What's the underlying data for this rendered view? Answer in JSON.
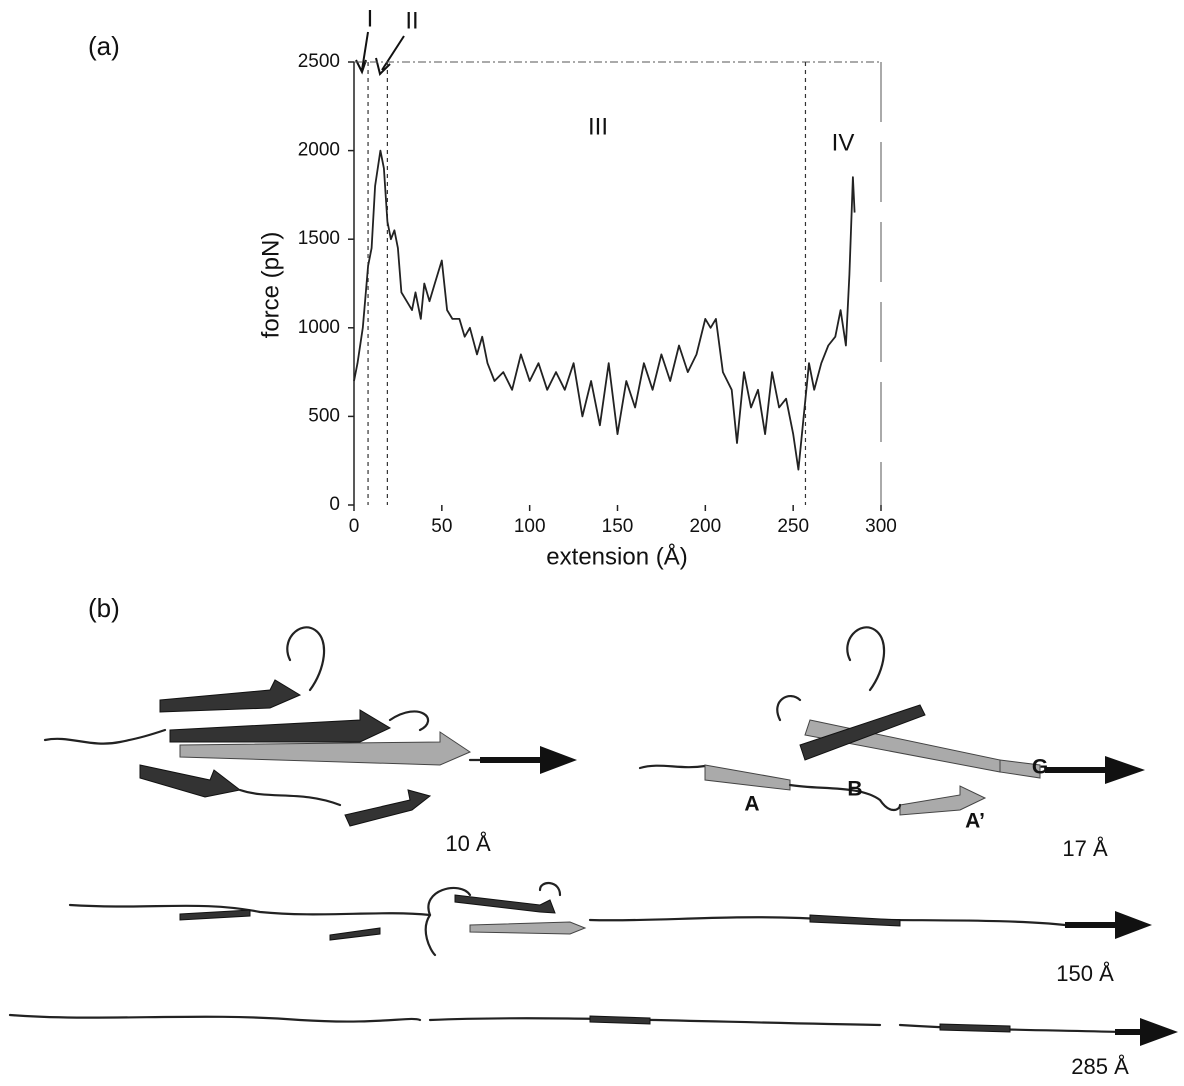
{
  "chart_data": {
    "type": "line",
    "panel_label": "(a)",
    "x_label": "extension (Å)",
    "y_label": "force (pN)",
    "x": [
      0,
      2,
      5,
      8,
      10,
      12,
      15,
      17,
      19,
      21,
      23,
      25,
      27,
      30,
      33,
      35,
      38,
      40,
      43,
      46,
      50,
      53,
      56,
      60,
      63,
      66,
      70,
      73,
      76,
      80,
      85,
      90,
      95,
      100,
      105,
      110,
      115,
      120,
      125,
      130,
      135,
      140,
      145,
      150,
      155,
      160,
      165,
      170,
      175,
      180,
      185,
      190,
      195,
      200,
      203,
      206,
      210,
      215,
      218,
      222,
      226,
      230,
      234,
      238,
      242,
      246,
      250,
      253,
      256,
      259,
      262,
      266,
      270,
      274,
      277,
      280,
      282,
      284,
      285
    ],
    "series": [
      {
        "color": "#222222",
        "values": [
          700,
          800,
          1000,
          1350,
          1450,
          1800,
          2000,
          1900,
          1600,
          1500,
          1550,
          1450,
          1200,
          1150,
          1100,
          1200,
          1050,
          1250,
          1150,
          1250,
          1380,
          1100,
          1050,
          1050,
          950,
          1000,
          850,
          950,
          800,
          700,
          750,
          650,
          850,
          700,
          800,
          650,
          750,
          650,
          800,
          500,
          700,
          450,
          800,
          400,
          700,
          550,
          800,
          650,
          850,
          700,
          900,
          750,
          850,
          1050,
          1000,
          1050,
          750,
          650,
          350,
          750,
          550,
          650,
          400,
          750,
          550,
          600,
          400,
          200,
          500,
          800,
          650,
          800,
          900,
          950,
          1100,
          900,
          1300,
          1850,
          1650
        ]
      }
    ],
    "xlim": [
      0,
      300
    ],
    "ylim": [
      0,
      2500
    ],
    "xticks": [
      0,
      50,
      100,
      150,
      200,
      250,
      300
    ],
    "yticks": [
      0,
      500,
      1000,
      1500,
      2000,
      2500
    ],
    "region_boundaries": [
      8,
      19,
      257
    ],
    "region_labels": [
      "I",
      "II",
      "III",
      "IV"
    ]
  },
  "panel_b": {
    "panel_label": "(b)",
    "snapshot_labels": [
      "10 Å",
      "17 Å",
      "150 Å",
      "285 Å"
    ],
    "strand_labels": [
      "A",
      "B",
      "A’",
      "G"
    ]
  }
}
